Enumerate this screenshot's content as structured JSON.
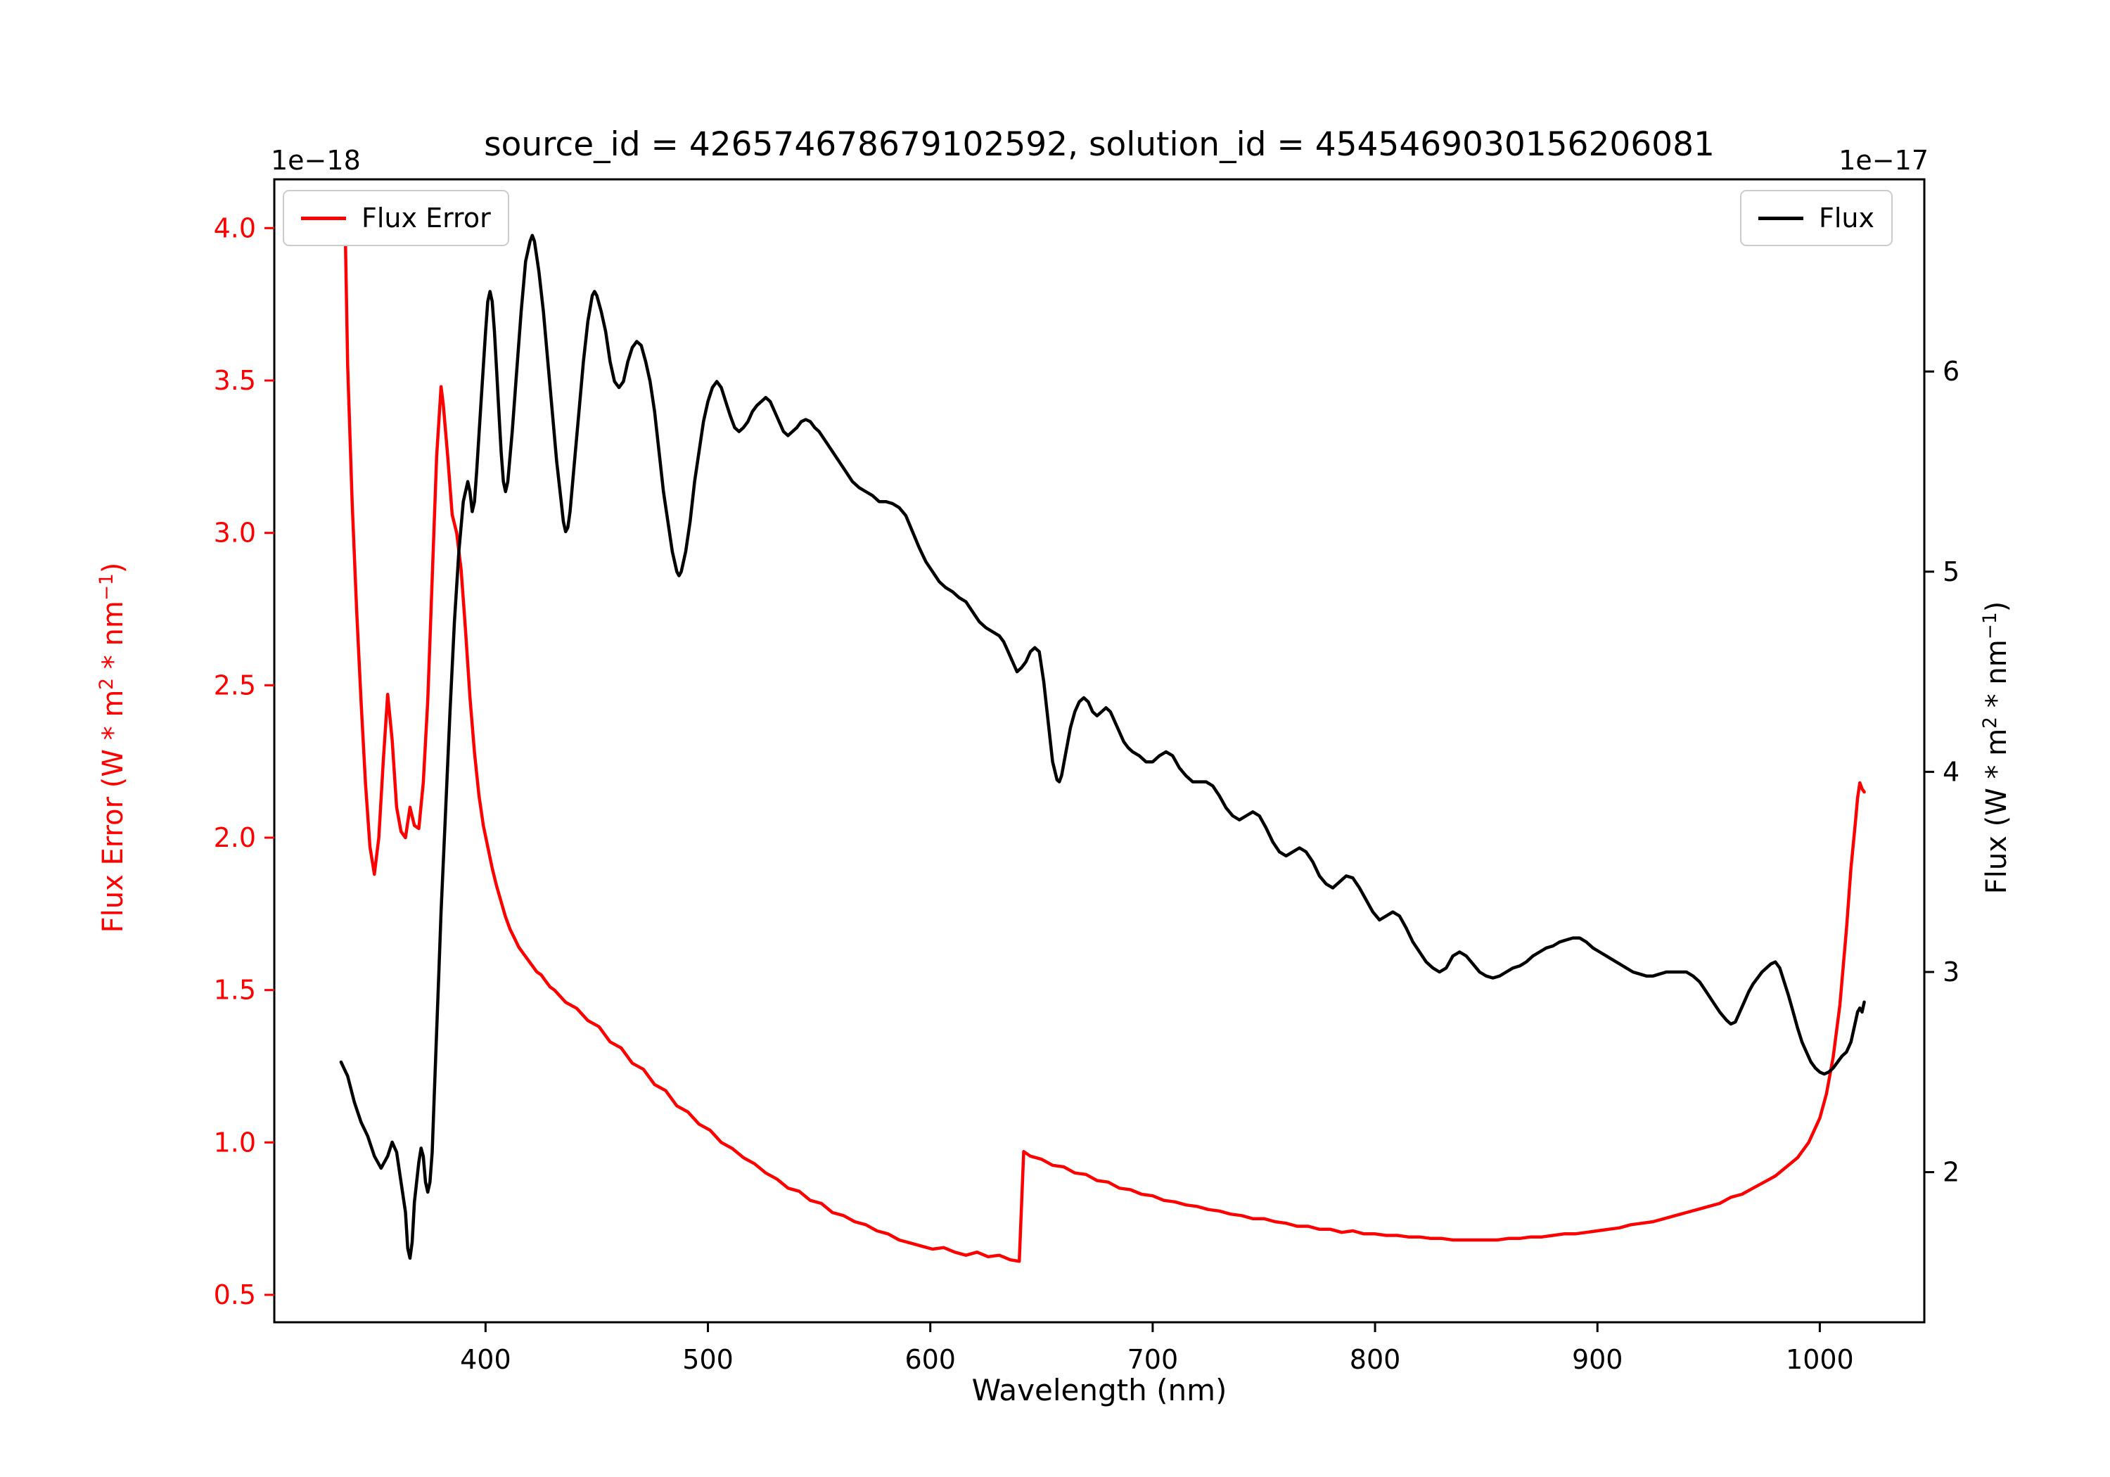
{
  "chart_data": {
    "type": "line",
    "title": "source_id = 426574678679102592, solution_id = 4545469030156206081",
    "xlabel": "Wavelength (nm)",
    "grid": false,
    "xlim": [
      305,
      1047
    ],
    "xticks": [
      [
        400,
        "400"
      ],
      [
        500,
        "500"
      ],
      [
        600,
        "600"
      ],
      [
        700,
        "700"
      ],
      [
        800,
        "800"
      ],
      [
        900,
        "900"
      ],
      [
        1000,
        "1000"
      ]
    ],
    "left_axis": {
      "label_parts": [
        "Flux Error (W * m",
        "2",
        " * nm",
        "−1",
        ")"
      ],
      "offset": "1e−18",
      "color": "#ff0000",
      "lim": [
        0.41,
        4.16
      ],
      "ticks": [
        [
          0.5,
          "0.5"
        ],
        [
          1.0,
          "1.0"
        ],
        [
          1.5,
          "1.5"
        ],
        [
          2.0,
          "2.0"
        ],
        [
          2.5,
          "2.5"
        ],
        [
          3.0,
          "3.0"
        ],
        [
          3.5,
          "3.5"
        ],
        [
          4.0,
          "4.0"
        ]
      ]
    },
    "right_axis": {
      "label_parts": [
        "Flux (W * m",
        "2",
        " * nm",
        "−1",
        ")"
      ],
      "offset": "1e−17",
      "color": "#000000",
      "lim": [
        1.25,
        6.96
      ],
      "ticks": [
        [
          2,
          "2"
        ],
        [
          3,
          "3"
        ],
        [
          4,
          "4"
        ],
        [
          5,
          "5"
        ],
        [
          6,
          "6"
        ]
      ]
    },
    "legend": [
      "Flux Error",
      "Flux"
    ],
    "series": [
      {
        "name": "Flux Error",
        "axis": "left",
        "color": "#ff0000",
        "x": [
          336,
          337,
          338,
          340,
          342,
          344,
          346,
          348,
          350,
          352,
          354,
          356,
          358,
          360,
          362,
          364,
          366,
          368,
          370,
          372,
          374,
          376,
          378,
          380,
          381,
          383,
          385,
          387,
          389,
          391,
          393,
          395,
          397,
          399,
          401,
          403,
          405,
          407,
          409,
          411,
          413,
          415,
          417,
          419,
          421,
          423,
          425,
          427,
          429,
          431,
          436,
          441,
          446,
          451,
          456,
          461,
          466,
          471,
          476,
          481,
          486,
          491,
          496,
          501,
          506,
          511,
          516,
          521,
          526,
          531,
          536,
          541,
          546,
          551,
          556,
          561,
          566,
          571,
          576,
          581,
          586,
          591,
          596,
          601,
          606,
          611,
          616,
          621,
          626,
          631,
          636,
          640,
          642,
          645,
          650,
          655,
          660,
          665,
          670,
          675,
          680,
          685,
          690,
          695,
          700,
          705,
          710,
          715,
          720,
          725,
          730,
          735,
          740,
          745,
          750,
          755,
          760,
          765,
          770,
          775,
          780,
          785,
          790,
          795,
          800,
          805,
          810,
          815,
          820,
          825,
          830,
          835,
          840,
          845,
          850,
          855,
          860,
          865,
          870,
          875,
          880,
          885,
          890,
          895,
          900,
          905,
          910,
          915,
          920,
          925,
          930,
          935,
          940,
          945,
          950,
          955,
          960,
          965,
          970,
          975,
          980,
          985,
          990,
          995,
          1000,
          1003,
          1006,
          1009,
          1012,
          1014,
          1016,
          1017,
          1018,
          1019,
          1020
        ],
        "y": [
          4.08,
          3.95,
          3.55,
          3.1,
          2.75,
          2.45,
          2.18,
          1.97,
          1.88,
          2.0,
          2.25,
          2.47,
          2.32,
          2.1,
          2.02,
          2.0,
          2.1,
          2.04,
          2.03,
          2.18,
          2.45,
          2.85,
          3.25,
          3.48,
          3.42,
          3.25,
          3.06,
          3.0,
          2.88,
          2.68,
          2.46,
          2.28,
          2.14,
          2.04,
          1.97,
          1.9,
          1.84,
          1.79,
          1.74,
          1.7,
          1.67,
          1.64,
          1.62,
          1.6,
          1.58,
          1.56,
          1.55,
          1.53,
          1.51,
          1.5,
          1.46,
          1.44,
          1.4,
          1.38,
          1.33,
          1.31,
          1.26,
          1.24,
          1.19,
          1.17,
          1.12,
          1.1,
          1.06,
          1.04,
          1.0,
          0.98,
          0.95,
          0.93,
          0.9,
          0.88,
          0.85,
          0.84,
          0.81,
          0.8,
          0.77,
          0.76,
          0.74,
          0.73,
          0.71,
          0.7,
          0.68,
          0.67,
          0.66,
          0.65,
          0.655,
          0.64,
          0.63,
          0.64,
          0.625,
          0.63,
          0.615,
          0.61,
          0.97,
          0.955,
          0.945,
          0.925,
          0.92,
          0.9,
          0.895,
          0.875,
          0.87,
          0.85,
          0.845,
          0.83,
          0.825,
          0.81,
          0.805,
          0.795,
          0.79,
          0.78,
          0.775,
          0.765,
          0.76,
          0.75,
          0.75,
          0.74,
          0.735,
          0.725,
          0.725,
          0.715,
          0.715,
          0.705,
          0.71,
          0.7,
          0.7,
          0.695,
          0.695,
          0.69,
          0.69,
          0.685,
          0.685,
          0.68,
          0.68,
          0.68,
          0.68,
          0.68,
          0.685,
          0.685,
          0.69,
          0.69,
          0.695,
          0.7,
          0.7,
          0.705,
          0.71,
          0.715,
          0.72,
          0.73,
          0.735,
          0.74,
          0.75,
          0.76,
          0.77,
          0.78,
          0.79,
          0.8,
          0.82,
          0.83,
          0.85,
          0.87,
          0.89,
          0.92,
          0.95,
          1.0,
          1.08,
          1.16,
          1.28,
          1.45,
          1.7,
          1.9,
          2.05,
          2.13,
          2.18,
          2.16,
          2.15
        ]
      },
      {
        "name": "Flux",
        "axis": "right",
        "color": "#000000",
        "x": [
          335,
          338,
          341,
          344,
          347,
          350,
          353,
          356,
          358,
          360,
          362,
          364,
          365,
          366,
          367,
          368,
          370,
          371,
          372,
          373,
          374,
          375,
          376,
          377,
          378,
          379,
          380,
          382,
          384,
          386,
          388,
          390,
          392,
          393,
          394,
          395,
          396,
          398,
          400,
          401,
          402,
          403,
          404,
          405,
          406,
          407,
          408,
          409,
          410,
          412,
          414,
          416,
          418,
          420,
          421,
          422,
          424,
          426,
          428,
          430,
          432,
          434,
          435,
          436,
          437,
          438,
          440,
          442,
          444,
          446,
          448,
          449,
          450,
          452,
          454,
          456,
          458,
          460,
          462,
          464,
          466,
          468,
          470,
          472,
          474,
          476,
          478,
          480,
          482,
          484,
          486,
          487,
          488,
          490,
          492,
          494,
          496,
          498,
          500,
          502,
          504,
          506,
          508,
          510,
          512,
          514,
          516,
          518,
          520,
          522,
          524,
          526,
          528,
          530,
          532,
          534,
          536,
          538,
          540,
          542,
          544,
          546,
          548,
          550,
          553,
          556,
          559,
          562,
          565,
          568,
          571,
          574,
          577,
          580,
          583,
          586,
          589,
          592,
          595,
          598,
          601,
          604,
          607,
          610,
          613,
          616,
          619,
          622,
          625,
          628,
          631,
          633,
          635,
          637,
          639,
          641,
          643,
          645,
          647,
          649,
          651,
          653,
          655,
          657,
          658,
          659,
          661,
          663,
          665,
          667,
          669,
          671,
          673,
          675,
          677,
          679,
          681,
          683,
          685,
          687,
          689,
          691,
          694,
          697,
          700,
          703,
          706,
          709,
          712,
          715,
          718,
          721,
          724,
          727,
          730,
          733,
          736,
          739,
          742,
          745,
          748,
          751,
          754,
          757,
          760,
          763,
          766,
          769,
          772,
          775,
          778,
          781,
          784,
          787,
          790,
          793,
          796,
          799,
          802,
          805,
          808,
          811,
          814,
          817,
          820,
          823,
          826,
          829,
          832,
          835,
          838,
          841,
          844,
          847,
          850,
          853,
          856,
          859,
          862,
          865,
          868,
          871,
          874,
          877,
          880,
          883,
          886,
          889,
          892,
          895,
          898,
          901,
          904,
          907,
          910,
          913,
          916,
          919,
          922,
          925,
          928,
          931,
          934,
          937,
          940,
          943,
          946,
          949,
          952,
          955,
          958,
          960,
          962,
          964,
          966,
          968,
          970,
          972,
          974,
          976,
          978,
          980,
          982,
          984,
          986,
          988,
          990,
          992,
          994,
          996,
          998,
          1000,
          1002,
          1004,
          1006,
          1008,
          1010,
          1012,
          1014,
          1016,
          1017,
          1018,
          1019,
          1020
        ],
        "y": [
          2.55,
          2.48,
          2.35,
          2.25,
          2.18,
          2.08,
          2.02,
          2.08,
          2.15,
          2.1,
          1.95,
          1.8,
          1.62,
          1.57,
          1.65,
          1.85,
          2.05,
          2.12,
          2.08,
          1.95,
          1.9,
          1.95,
          2.1,
          2.4,
          2.7,
          3.0,
          3.3,
          3.8,
          4.3,
          4.75,
          5.1,
          5.35,
          5.45,
          5.4,
          5.3,
          5.35,
          5.5,
          5.85,
          6.2,
          6.35,
          6.4,
          6.35,
          6.2,
          6.0,
          5.8,
          5.6,
          5.45,
          5.4,
          5.45,
          5.7,
          6.0,
          6.3,
          6.55,
          6.65,
          6.68,
          6.65,
          6.5,
          6.3,
          6.05,
          5.8,
          5.55,
          5.35,
          5.25,
          5.2,
          5.22,
          5.3,
          5.55,
          5.8,
          6.05,
          6.25,
          6.38,
          6.4,
          6.38,
          6.3,
          6.2,
          6.05,
          5.95,
          5.92,
          5.95,
          6.05,
          6.12,
          6.15,
          6.13,
          6.05,
          5.95,
          5.8,
          5.6,
          5.4,
          5.25,
          5.1,
          5.0,
          4.98,
          5.0,
          5.1,
          5.25,
          5.45,
          5.6,
          5.75,
          5.85,
          5.92,
          5.95,
          5.92,
          5.85,
          5.78,
          5.72,
          5.7,
          5.72,
          5.75,
          5.8,
          5.83,
          5.85,
          5.87,
          5.85,
          5.8,
          5.75,
          5.7,
          5.68,
          5.7,
          5.72,
          5.75,
          5.76,
          5.75,
          5.72,
          5.7,
          5.65,
          5.6,
          5.55,
          5.5,
          5.45,
          5.42,
          5.4,
          5.38,
          5.35,
          5.35,
          5.34,
          5.32,
          5.28,
          5.2,
          5.12,
          5.05,
          5.0,
          4.95,
          4.92,
          4.9,
          4.87,
          4.85,
          4.8,
          4.75,
          4.72,
          4.7,
          4.68,
          4.65,
          4.6,
          4.55,
          4.5,
          4.52,
          4.55,
          4.6,
          4.62,
          4.6,
          4.45,
          4.25,
          4.05,
          3.96,
          3.95,
          3.98,
          4.1,
          4.22,
          4.3,
          4.35,
          4.37,
          4.35,
          4.3,
          4.28,
          4.3,
          4.32,
          4.3,
          4.25,
          4.2,
          4.15,
          4.12,
          4.1,
          4.08,
          4.05,
          4.05,
          4.08,
          4.1,
          4.08,
          4.02,
          3.98,
          3.95,
          3.95,
          3.95,
          3.93,
          3.88,
          3.82,
          3.78,
          3.76,
          3.78,
          3.8,
          3.78,
          3.72,
          3.65,
          3.6,
          3.58,
          3.6,
          3.62,
          3.6,
          3.55,
          3.48,
          3.44,
          3.42,
          3.45,
          3.48,
          3.47,
          3.42,
          3.36,
          3.3,
          3.26,
          3.28,
          3.3,
          3.28,
          3.22,
          3.15,
          3.1,
          3.05,
          3.02,
          3.0,
          3.02,
          3.08,
          3.1,
          3.08,
          3.04,
          3.0,
          2.98,
          2.97,
          2.98,
          3.0,
          3.02,
          3.03,
          3.05,
          3.08,
          3.1,
          3.12,
          3.13,
          3.15,
          3.16,
          3.17,
          3.17,
          3.15,
          3.12,
          3.1,
          3.08,
          3.06,
          3.04,
          3.02,
          3.0,
          2.99,
          2.98,
          2.98,
          2.99,
          3.0,
          3.0,
          3.0,
          3.0,
          2.98,
          2.95,
          2.9,
          2.85,
          2.8,
          2.76,
          2.74,
          2.75,
          2.8,
          2.85,
          2.9,
          2.94,
          2.97,
          3.0,
          3.02,
          3.04,
          3.05,
          3.02,
          2.95,
          2.88,
          2.8,
          2.72,
          2.65,
          2.6,
          2.55,
          2.52,
          2.5,
          2.49,
          2.5,
          2.52,
          2.55,
          2.58,
          2.6,
          2.65,
          2.75,
          2.8,
          2.82,
          2.8,
          2.85
        ]
      }
    ]
  }
}
